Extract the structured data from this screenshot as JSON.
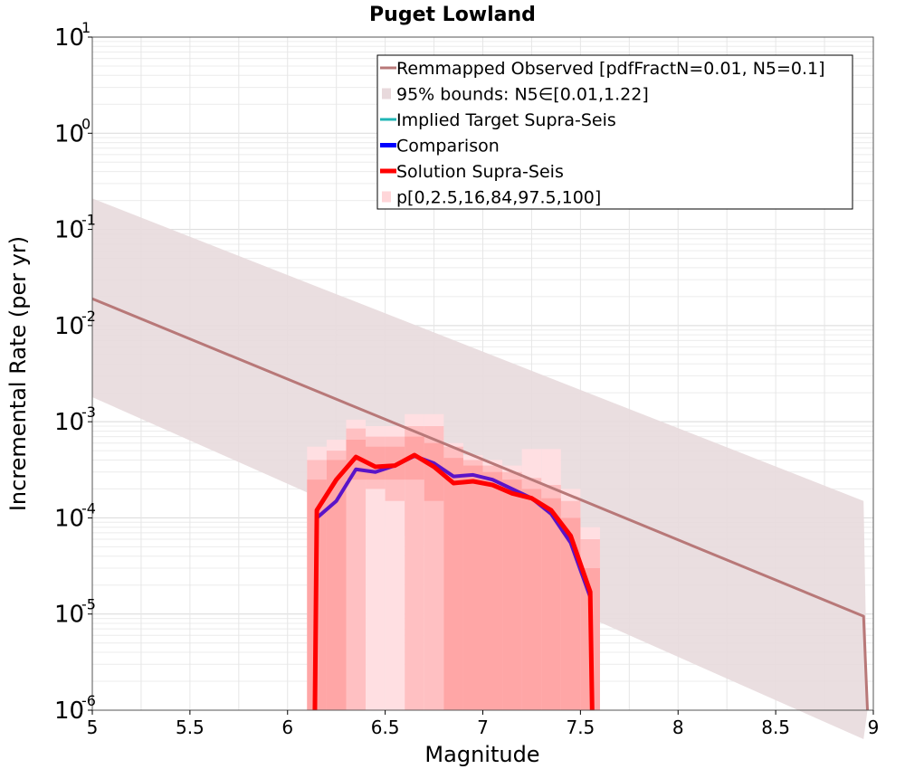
{
  "chart_data": {
    "type": "line",
    "title": "Puget Lowland",
    "xlabel": "Magnitude",
    "ylabel": "Incremental Rate (per yr)",
    "xlim": [
      5,
      9
    ],
    "ylim": [
      1e-06,
      10
    ],
    "yscale": "log",
    "grid": true,
    "legend_position": "top-right",
    "x_ticks": [
      "5",
      "5.5",
      "6",
      "6.5",
      "7",
      "7.5",
      "8",
      "8.5",
      "9"
    ],
    "y_ticks": [
      {
        "base": "10",
        "exp": "-6"
      },
      {
        "base": "10",
        "exp": "-5"
      },
      {
        "base": "10",
        "exp": "-4"
      },
      {
        "base": "10",
        "exp": "-3"
      },
      {
        "base": "10",
        "exp": "-2"
      },
      {
        "base": "10",
        "exp": "-1"
      },
      {
        "base": "10",
        "exp": "0"
      },
      {
        "base": "10",
        "exp": "1"
      }
    ],
    "legend": [
      {
        "label": "Remmapped Observed [pdfFractN=0.01, N5=0.1]",
        "color": "#b87878",
        "kind": "line"
      },
      {
        "label": "95% bounds: N5∈[0.01,1.22]",
        "color": "#e8d9dc",
        "kind": "patch"
      },
      {
        "label": "Implied Target Supra-Seis",
        "color": "#1fb5b5",
        "kind": "line"
      },
      {
        "label": "Comparison",
        "color": "#0000ff",
        "kind": "thickline"
      },
      {
        "label": "Solution Supra-Seis",
        "color": "#ff0000",
        "kind": "thickline"
      },
      {
        "label": "p[0,2.5,16,84,97.5,100]",
        "color": "#ffd6d9",
        "kind": "patch"
      }
    ],
    "colors": {
      "observed": "#b87878",
      "bounds_fill": "#e8dadd",
      "comparison": "#5a14c8",
      "solution": "#ff0000",
      "band_outer": "#ffdfe2",
      "band_mid": "#ffc0c2",
      "band_inner": "#ffa6a6"
    },
    "series": {
      "observed": {
        "x": [
          5.0,
          8.95,
          8.97
        ],
        "y": [
          0.019,
          9.5e-06,
          1e-06
        ]
      },
      "bounds": {
        "x": [
          5.0,
          8.95,
          8.97
        ],
        "upper": [
          0.21,
          0.00015,
          1e-06
        ],
        "lower": [
          0.0018,
          3.5e-07,
          1e-06
        ]
      },
      "comparison": {
        "x": [
          6.14,
          6.15,
          6.25,
          6.35,
          6.45,
          6.55,
          6.65,
          6.75,
          6.85,
          6.95,
          7.05,
          7.15,
          7.25,
          7.35,
          7.45,
          7.55,
          7.56
        ],
        "y": [
          1e-06,
          0.0001,
          0.00015,
          0.00032,
          0.0003,
          0.00035,
          0.00044,
          0.00037,
          0.00027,
          0.00028,
          0.00025,
          0.0002,
          0.00016,
          0.00011,
          5.5e-05,
          1.5e-05,
          1e-06
        ]
      },
      "solution": {
        "x": [
          6.14,
          6.15,
          6.25,
          6.35,
          6.45,
          6.55,
          6.65,
          6.75,
          6.85,
          6.95,
          7.05,
          7.15,
          7.25,
          7.35,
          7.45,
          7.55,
          7.56
        ],
        "y": [
          1e-06,
          0.00012,
          0.00025,
          0.00043,
          0.00034,
          0.00035,
          0.00045,
          0.00034,
          0.00023,
          0.00024,
          0.00022,
          0.00018,
          0.00016,
          0.00012,
          6.5e-05,
          1.7e-05,
          1e-06
        ]
      },
      "percentile_bands": [
        {
          "name": "p0-p100",
          "x": [
            6.15,
            6.25,
            6.35,
            6.45,
            6.55,
            6.65,
            6.75,
            6.85,
            6.95,
            7.05,
            7.15,
            7.25,
            7.35,
            7.45,
            7.55
          ],
          "hi": [
            0.00055,
            0.00065,
            0.00105,
            0.0009,
            0.0009,
            0.0012,
            0.0012,
            0.0006,
            0.00045,
            0.0004,
            0.00035,
            0.00052,
            0.00052,
            0.0002,
            8e-05
          ],
          "lo": [
            1e-06,
            1e-06,
            1e-06,
            1e-06,
            1e-06,
            1e-06,
            1e-06,
            1e-06,
            1e-06,
            1e-06,
            1e-06,
            1e-06,
            1e-06,
            1e-06,
            1e-06
          ]
        },
        {
          "name": "p2.5-p97.5",
          "x": [
            6.15,
            6.25,
            6.35,
            6.45,
            6.55,
            6.65,
            6.75,
            6.85,
            6.95,
            7.05,
            7.15,
            7.25,
            7.35,
            7.45,
            7.55
          ],
          "hi": [
            0.0004,
            0.0005,
            0.00085,
            0.0007,
            0.0007,
            0.0009,
            0.0009,
            0.00055,
            0.0004,
            0.00035,
            0.0003,
            0.00026,
            0.00022,
            0.00015,
            6e-05
          ],
          "lo": [
            1e-06,
            1e-06,
            1e-06,
            0.0002,
            0.00015,
            1e-06,
            1e-06,
            1e-06,
            1e-06,
            1e-06,
            1e-06,
            1e-06,
            1e-06,
            1e-06,
            1e-06
          ]
        },
        {
          "name": "p16-p84",
          "x": [
            6.15,
            6.25,
            6.35,
            6.45,
            6.55,
            6.65,
            6.75,
            6.85,
            6.95,
            7.05,
            7.15,
            7.25,
            7.35,
            7.45,
            7.55
          ],
          "hi": [
            0.00025,
            0.0004,
            0.00065,
            0.00055,
            0.00055,
            0.0007,
            0.0006,
            0.00042,
            0.00035,
            0.0003,
            0.00025,
            0.0002,
            0.00016,
            0.0001,
            3e-05
          ],
          "lo": [
            1e-06,
            1e-06,
            0.00025,
            0.00025,
            0.00025,
            0.00025,
            0.00015,
            1e-06,
            1e-06,
            1e-06,
            1e-06,
            1e-06,
            1e-06,
            1e-06,
            1e-06
          ]
        }
      ]
    }
  }
}
